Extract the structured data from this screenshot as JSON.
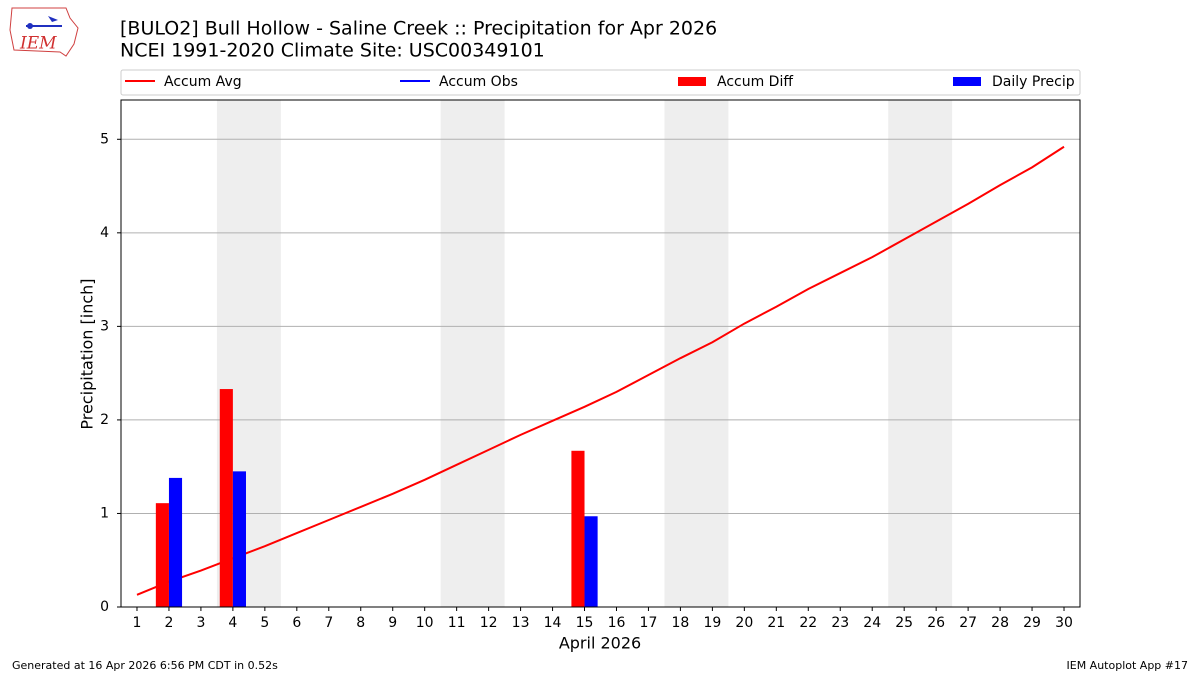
{
  "logo_text": "IEM",
  "chart_data": {
    "type": "bar_line",
    "title": "[BULO2] Bull Hollow - Saline Creek :: Precipitation for Apr 2026",
    "subtitle": "NCEI 1991-2020 Climate Site: USC00349101",
    "xlabel": "April 2026",
    "ylabel": "Precipitation [inch]",
    "x": [
      1,
      2,
      3,
      4,
      5,
      6,
      7,
      8,
      9,
      10,
      11,
      12,
      13,
      14,
      15,
      16,
      17,
      18,
      19,
      20,
      21,
      22,
      23,
      24,
      25,
      26,
      27,
      28,
      29,
      30
    ],
    "xlim": [
      0.5,
      30.5
    ],
    "xticks": [
      1,
      2,
      3,
      4,
      5,
      6,
      7,
      8,
      9,
      10,
      11,
      12,
      13,
      14,
      15,
      16,
      17,
      18,
      19,
      20,
      21,
      22,
      23,
      24,
      25,
      26,
      27,
      28,
      29,
      30
    ],
    "ylim": [
      0,
      5.42
    ],
    "yticks": [
      0,
      1,
      2,
      3,
      4,
      5
    ],
    "grid": true,
    "shaded_ranges": [
      [
        3.5,
        5.5
      ],
      [
        10.5,
        12.5
      ],
      [
        17.5,
        19.5
      ],
      [
        24.5,
        26.5
      ]
    ],
    "shade_color": "#eeeeee",
    "series": [
      {
        "name": "Accum Avg",
        "kind": "line",
        "color": "#ff0000",
        "values": [
          0.13,
          0.27,
          0.39,
          0.52,
          0.65,
          0.79,
          0.93,
          1.07,
          1.21,
          1.36,
          1.52,
          1.68,
          1.84,
          1.99,
          2.14,
          2.3,
          2.48,
          2.66,
          2.83,
          3.03,
          3.21,
          3.4,
          3.57,
          3.74,
          3.93,
          4.12,
          4.31,
          4.51,
          4.7,
          4.92
        ]
      },
      {
        "name": "Accum Obs",
        "kind": "line",
        "color": "#0000ff",
        "values": [
          null,
          null,
          null,
          null,
          null,
          null,
          null,
          null,
          null,
          null,
          null,
          null,
          null,
          null,
          null,
          null,
          null,
          null,
          null,
          null,
          null,
          null,
          null,
          null,
          null,
          null,
          null,
          null,
          null,
          null
        ]
      },
      {
        "name": "Accum Diff",
        "kind": "bar",
        "side": "left",
        "color": "#ff0000",
        "values": [
          null,
          1.11,
          null,
          2.33,
          null,
          null,
          null,
          null,
          null,
          null,
          null,
          null,
          null,
          null,
          1.67,
          null,
          null,
          null,
          null,
          null,
          null,
          null,
          null,
          null,
          null,
          null,
          null,
          null,
          null,
          null
        ]
      },
      {
        "name": "Daily Precip",
        "kind": "bar",
        "side": "right",
        "color": "#0000ff",
        "values": [
          null,
          1.38,
          null,
          1.45,
          null,
          null,
          null,
          null,
          null,
          null,
          null,
          null,
          null,
          null,
          0.97,
          null,
          null,
          null,
          null,
          null,
          null,
          null,
          null,
          null,
          null,
          null,
          null,
          null,
          null,
          null
        ]
      }
    ],
    "footer_left": "Generated at 16 Apr 2026 6:56 PM CDT in 0.52s",
    "footer_right": "IEM Autoplot App #17"
  }
}
